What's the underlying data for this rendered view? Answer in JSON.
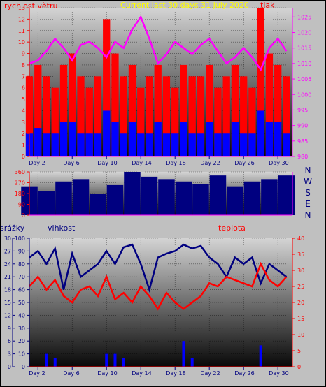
{
  "chart_data": [
    {
      "type": "line",
      "title": "Current last 30 days 31 July 2020",
      "ylabel": "rychlost větru",
      "y2label": "tlak",
      "ylim": [
        0,
        13
      ],
      "y2lim": [
        980,
        1028
      ],
      "yticks": [
        "0",
        "1",
        "2",
        "3",
        "4",
        "5",
        "6",
        "7",
        "8",
        "9",
        "10",
        "11",
        "12",
        "13"
      ],
      "y2ticks": [
        "980",
        "985",
        "990",
        "995",
        "1000",
        "1005",
        "1010",
        "1015",
        "1020",
        "1025"
      ],
      "xlim": [
        1,
        31.7
      ],
      "xticks": [
        "Day 2",
        "Day 6",
        "Day 10",
        "Day 14",
        "Day 18",
        "Day 22",
        "Day 26",
        "Day 30"
      ],
      "xtick_days": [
        2,
        6,
        10,
        14,
        18,
        22,
        26,
        30
      ],
      "colors": {
        "gust": "#ff0000",
        "wind": "#0000ff",
        "pressure": "#ff00ff",
        "title": "#ffff00",
        "axis": "#ff00ff"
      },
      "series": [
        {
          "role": "gust",
          "axis": "left",
          "x": [
            1,
            2,
            3,
            4,
            5,
            6,
            7,
            8,
            9,
            10,
            11,
            12,
            13,
            14,
            15,
            16,
            17,
            18,
            19,
            20,
            21,
            22,
            23,
            24,
            25,
            26,
            27,
            28,
            29,
            30,
            31
          ],
          "y": [
            7,
            8,
            7,
            6,
            8,
            9,
            7,
            6,
            7,
            12,
            9,
            7,
            8,
            6,
            7,
            8,
            7,
            6,
            8,
            7,
            7,
            8,
            6,
            7,
            8,
            7,
            6,
            13,
            9,
            8,
            7
          ]
        },
        {
          "role": "wind",
          "axis": "left",
          "x": [
            1,
            2,
            3,
            4,
            5,
            6,
            7,
            8,
            9,
            10,
            11,
            12,
            13,
            14,
            15,
            16,
            17,
            18,
            19,
            20,
            21,
            22,
            23,
            24,
            25,
            26,
            27,
            28,
            29,
            30,
            31
          ],
          "y": [
            2,
            2.5,
            2,
            2,
            3,
            3,
            2,
            2,
            2,
            4,
            3,
            2,
            3,
            2,
            2,
            3,
            2,
            2,
            3,
            2,
            2,
            3,
            2,
            2,
            3,
            2,
            2,
            4,
            3,
            3,
            2
          ]
        },
        {
          "role": "pressure",
          "axis": "right",
          "x": [
            1,
            2,
            3,
            4,
            5,
            6,
            7,
            8,
            9,
            10,
            11,
            12,
            13,
            14,
            15,
            16,
            17,
            18,
            19,
            20,
            21,
            22,
            23,
            24,
            25,
            26,
            27,
            28,
            29,
            30,
            31
          ],
          "y": [
            1010,
            1011,
            1014,
            1018,
            1015,
            1011,
            1016,
            1017,
            1015,
            1012,
            1017,
            1015,
            1021,
            1025,
            1018,
            1010,
            1013,
            1017,
            1015,
            1013,
            1016,
            1018,
            1014,
            1010,
            1012,
            1015,
            1012,
            1008,
            1015,
            1018,
            1014
          ]
        }
      ]
    },
    {
      "type": "bar",
      "ylim": [
        0,
        360
      ],
      "yticks": [
        "0",
        "90",
        "180",
        "270",
        "360"
      ],
      "direction_labels": [
        "N",
        "W",
        "S",
        "E",
        "N"
      ],
      "colors": {
        "bars": "#000080",
        "labels": "#000080"
      },
      "series": [
        {
          "name": "",
          "x": [
            1,
            3,
            5,
            7,
            9,
            11,
            13,
            15,
            17,
            19,
            21,
            23,
            25,
            27,
            29,
            31
          ],
          "y": [
            240,
            200,
            280,
            300,
            180,
            250,
            360,
            320,
            300,
            280,
            260,
            330,
            240,
            280,
            300,
            330
          ]
        }
      ]
    },
    {
      "type": "line",
      "labels": {
        "rain": "srážky",
        "humidity": "vlhkost",
        "temperature": "teplota"
      },
      "ylim_rain": [
        0,
        30
      ],
      "ylim_hum": [
        0,
        100
      ],
      "ylim_temp": [
        0,
        40
      ],
      "yticks_hum": [
        "0",
        "10",
        "20",
        "30",
        "40",
        "50",
        "60",
        "70",
        "80",
        "90",
        "100"
      ],
      "yticks_rain": [
        "0",
        "3",
        "6",
        "9",
        "12",
        "15",
        "18",
        "21",
        "24",
        "27",
        "30"
      ],
      "yticks_temp": [
        "0",
        "5",
        "10",
        "15",
        "20",
        "25",
        "30",
        "35",
        "40"
      ],
      "colors": {
        "humidity": "#000080",
        "temperature": "#ff0000",
        "rain": "#0000ff",
        "rain_label": "#000080",
        "temp_label": "#ff0000"
      },
      "series": [
        {
          "role": "humidity",
          "x": [
            1,
            2,
            3,
            4,
            5,
            6,
            7,
            8,
            9,
            10,
            11,
            12,
            13,
            14,
            15,
            16,
            17,
            18,
            19,
            20,
            21,
            22,
            23,
            24,
            25,
            26,
            27,
            28,
            29,
            30,
            31
          ],
          "y": [
            85,
            90,
            80,
            92,
            60,
            88,
            70,
            75,
            80,
            90,
            80,
            93,
            95,
            80,
            60,
            85,
            88,
            90,
            95,
            92,
            94,
            85,
            80,
            70,
            85,
            80,
            85,
            65,
            80,
            75,
            70
          ]
        },
        {
          "role": "temperature",
          "x": [
            1,
            2,
            3,
            4,
            5,
            6,
            7,
            8,
            9,
            10,
            11,
            12,
            13,
            14,
            15,
            16,
            17,
            18,
            19,
            20,
            21,
            22,
            23,
            24,
            25,
            26,
            27,
            28,
            29,
            30,
            31
          ],
          "y": [
            25,
            28,
            24,
            27,
            22,
            20,
            24,
            25,
            22,
            28,
            21,
            23,
            20,
            25,
            22,
            18,
            23,
            20,
            18,
            20,
            22,
            26,
            25,
            28,
            27,
            26,
            25,
            32,
            27,
            25,
            28
          ]
        },
        {
          "role": "rain",
          "x": [
            3,
            4,
            10,
            11,
            12,
            19,
            20,
            28
          ],
          "y": [
            3,
            2,
            3,
            3,
            2,
            6,
            2,
            5
          ]
        }
      ]
    }
  ]
}
